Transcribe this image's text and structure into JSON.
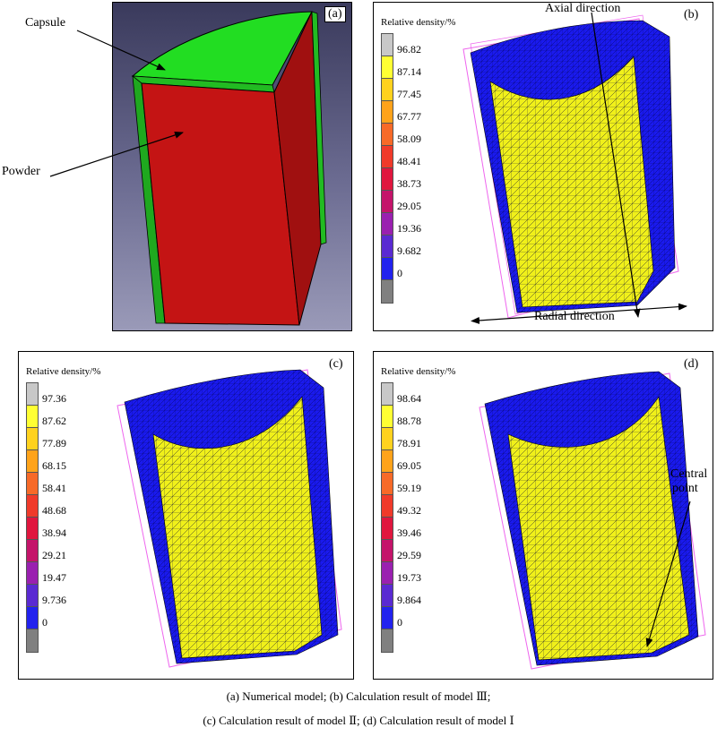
{
  "panels": {
    "a": {
      "label": "(a)"
    },
    "b": {
      "label": "(b)",
      "legend_title": "Relative density/%",
      "ticks": [
        "96.82",
        "87.14",
        "77.45",
        "67.77",
        "58.09",
        "48.41",
        "38.73",
        "29.05",
        "19.36",
        "9.682",
        "0"
      ]
    },
    "c": {
      "label": "(c)",
      "legend_title": "Relative density/%",
      "ticks": [
        "97.36",
        "87.62",
        "77.89",
        "68.15",
        "58.41",
        "48.68",
        "38.94",
        "29.21",
        "19.47",
        "9.736",
        "0"
      ]
    },
    "d": {
      "label": "(d)",
      "legend_title": "Relative density/%",
      "ticks": [
        "98.64",
        "88.78",
        "78.91",
        "69.05",
        "59.19",
        "49.32",
        "39.46",
        "29.59",
        "19.73",
        "9.864",
        "0"
      ]
    }
  },
  "legend_colors": [
    "#c8c8c8",
    "#ffff33",
    "#ffd21e",
    "#ffa31a",
    "#f76a28",
    "#f03a2a",
    "#e0163e",
    "#c4146a",
    "#9a20b0",
    "#5a2ad2",
    "#2222ee",
    "#808080"
  ],
  "annotations": {
    "capsule": "Capsule",
    "powder": "Powder",
    "axial": "Axial direction",
    "radial": "Radial direction",
    "central_line1": "Central",
    "central_line2": "point"
  },
  "colors": {
    "capsule": "#22dd22",
    "powder": "#c41414",
    "powder_side": "#a01010",
    "wall": "#1a1aee",
    "mesh": "#f0f01a"
  },
  "caption": {
    "line1": "(a) Numerical model; (b) Calculation result of model Ⅲ;",
    "line2": "(c) Calculation result of  model Ⅱ; (d) Calculation result of model Ⅰ"
  }
}
